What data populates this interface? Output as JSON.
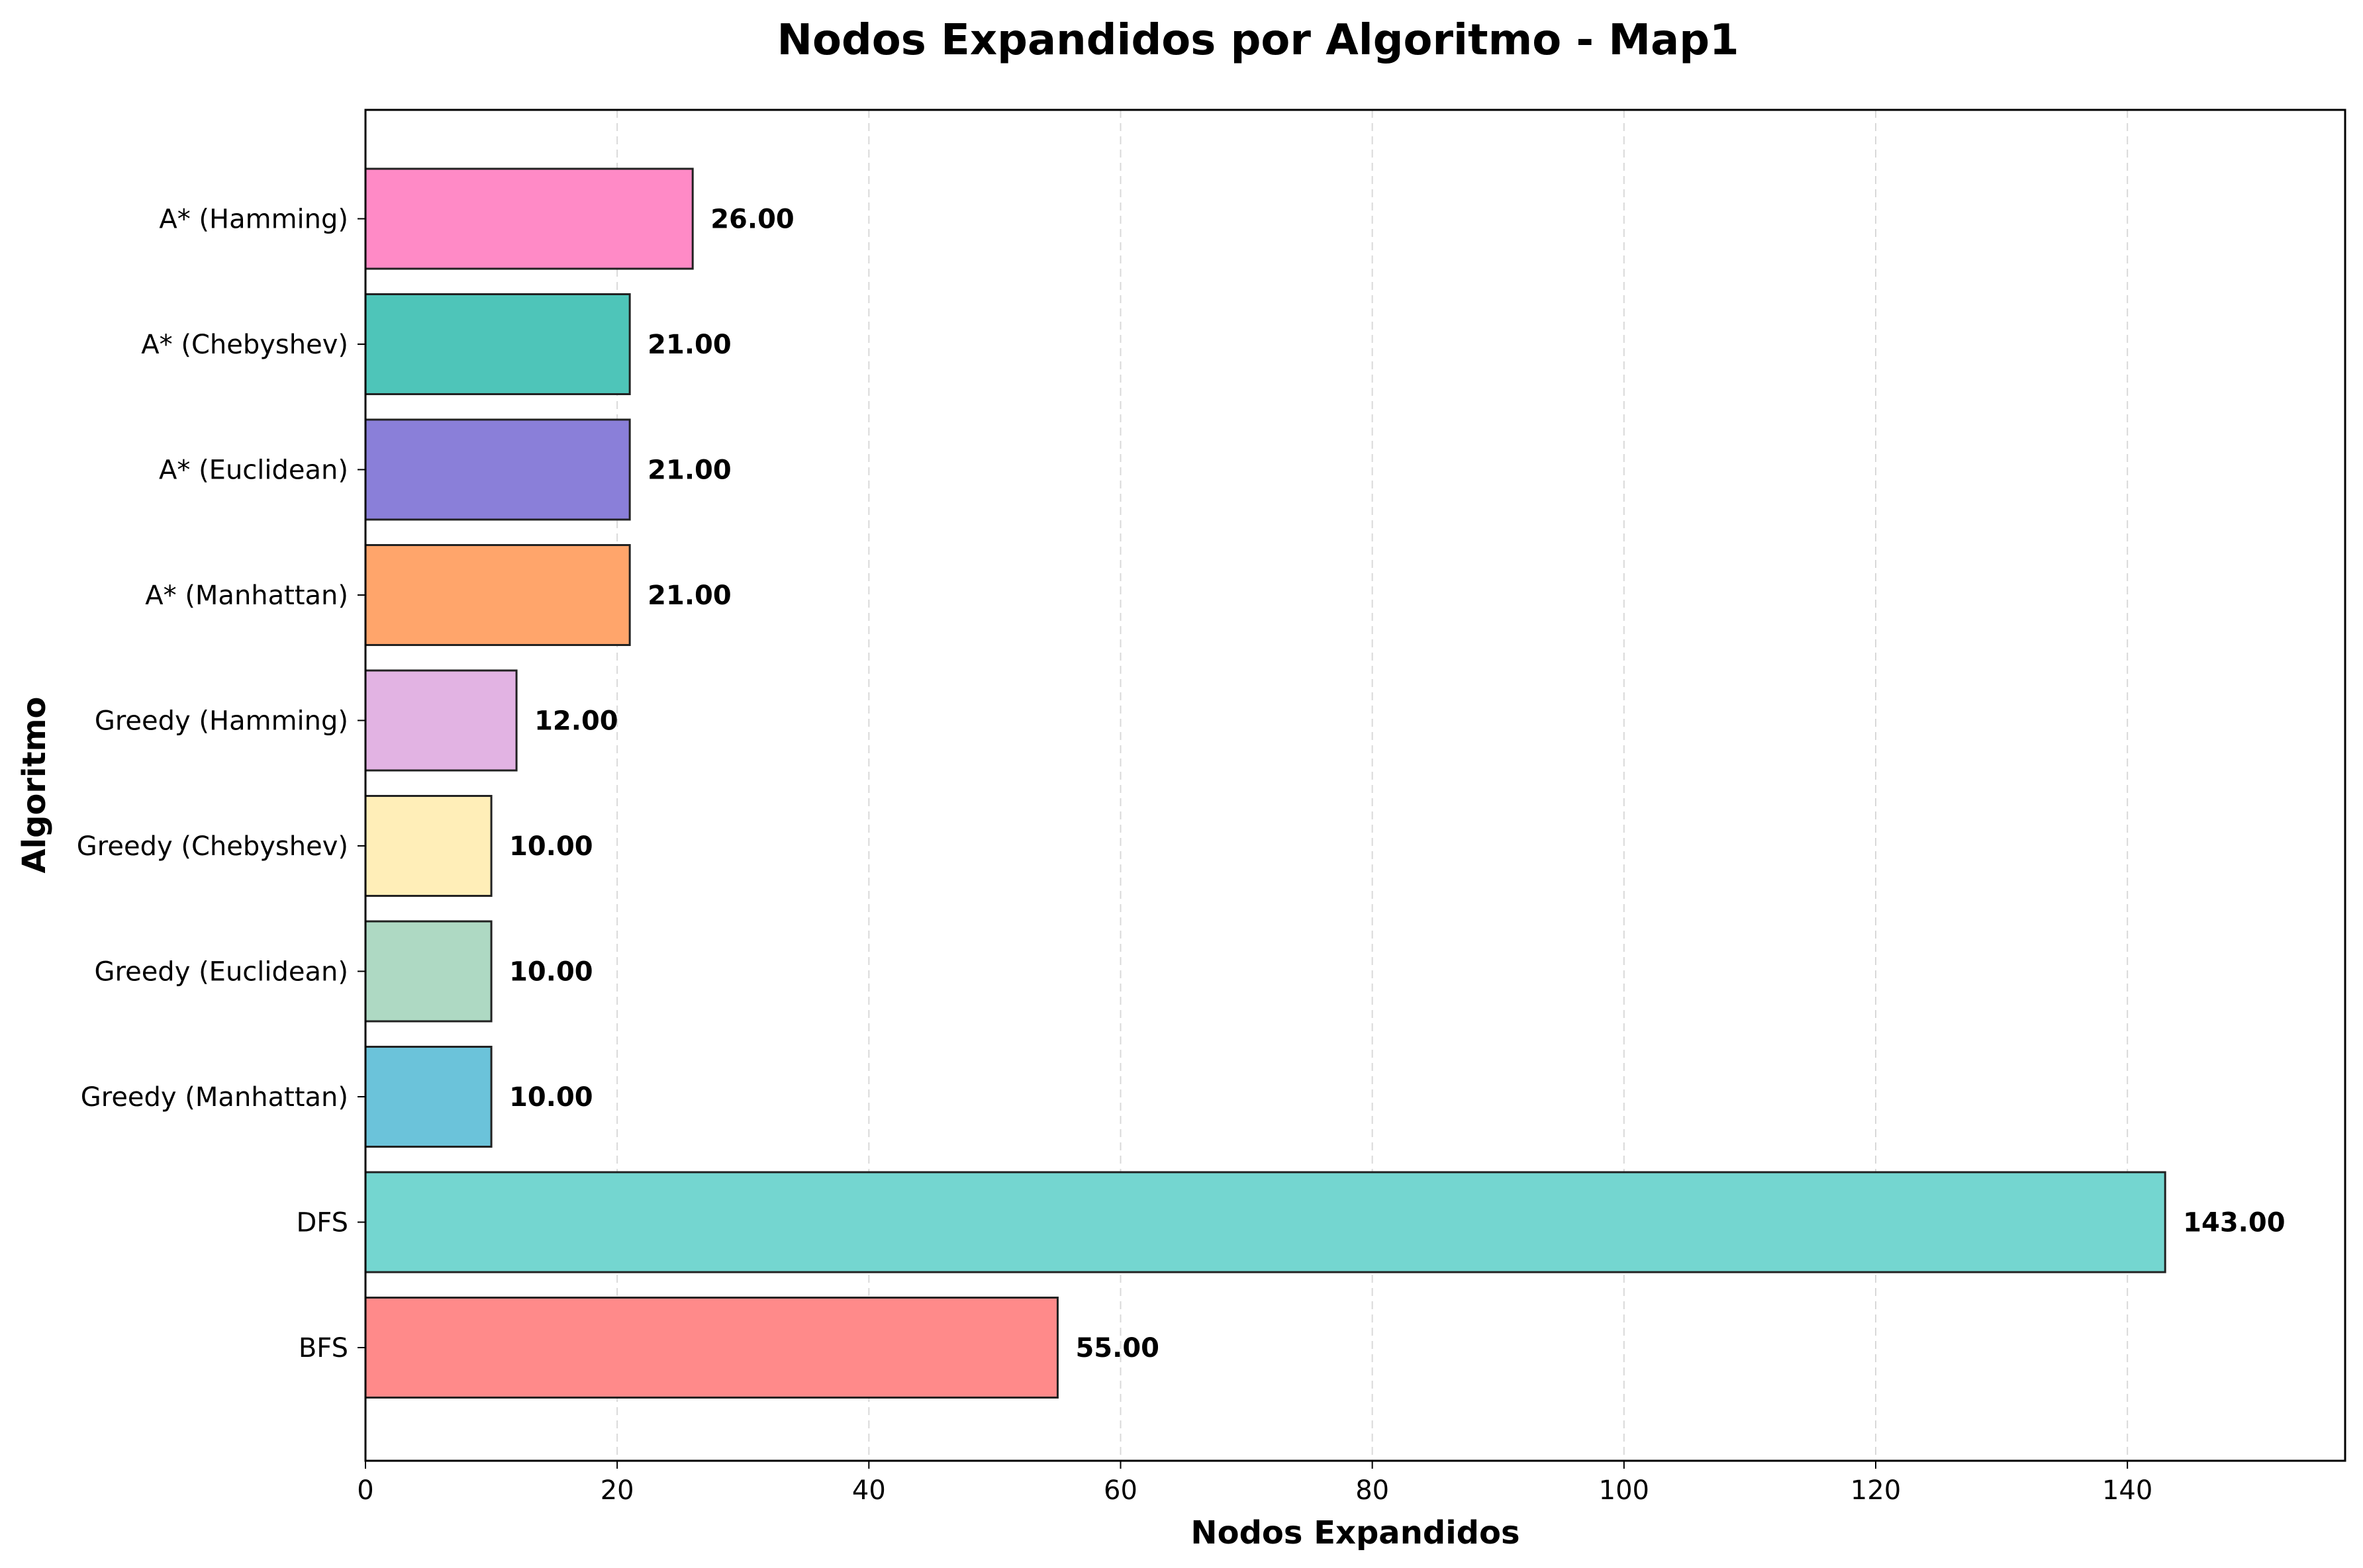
{
  "chart_data": {
    "type": "bar",
    "orientation": "horizontal",
    "title": "Nodos Expandidos por Algoritmo - Map1",
    "xlabel": "Nodos Expandidos",
    "ylabel": "Algoritmo",
    "xlim": [
      0,
      157.3
    ],
    "x_ticks": [
      "0",
      "20",
      "40",
      "60",
      "80",
      "100",
      "120",
      "140"
    ],
    "grid": "vertical dashed",
    "categories": [
      "BFS",
      "DFS",
      "Greedy (Manhattan)",
      "Greedy (Euclidean)",
      "Greedy (Chebyshev)",
      "Greedy (Hamming)",
      "A* (Manhattan)",
      "A* (Euclidean)",
      "A* (Chebyshev)",
      "A* (Hamming)"
    ],
    "values": [
      55,
      143,
      10,
      10,
      10,
      12,
      21,
      21,
      21,
      26
    ],
    "value_labels": [
      "55.00",
      "143.00",
      "10.00",
      "10.00",
      "10.00",
      "12.00",
      "21.00",
      "21.00",
      "21.00",
      "26.00"
    ],
    "colors": [
      "#FF8A8A",
      "#74D6D0",
      "#6BC3DA",
      "#AED9C3",
      "#FFEEB8",
      "#E2B3E3",
      "#FFA56B",
      "#8A7FD9",
      "#4EC5B9",
      "#FF8AC6"
    ]
  }
}
